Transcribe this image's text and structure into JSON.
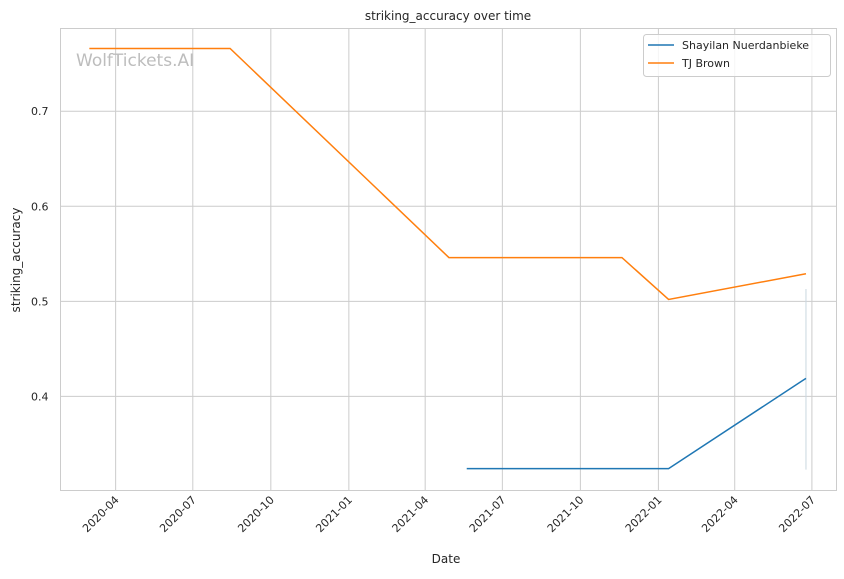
{
  "chart_data": {
    "type": "line",
    "title": "striking_accuracy over time",
    "xlabel": "Date",
    "ylabel": "striking_accuracy",
    "watermark": "WolfTickets.AI",
    "grid": true,
    "legend_placement": "top-right",
    "xlim": [
      "2020-01-27",
      "2022-07-30"
    ],
    "ylim": [
      0.301,
      0.787
    ],
    "x_ticks": [
      "2020-04",
      "2020-07",
      "2020-10",
      "2021-01",
      "2021-04",
      "2021-07",
      "2021-10",
      "2022-01",
      "2022-04",
      "2022-07"
    ],
    "y_ticks": [
      0.4,
      0.5,
      0.6,
      0.7
    ],
    "series": [
      {
        "name": "Shayilan Nuerdanbieke",
        "color": "#1f77b4",
        "x": [
          "2021-05-20",
          "2022-01-13",
          "2022-06-24"
        ],
        "y": [
          0.324,
          0.324,
          0.419
        ]
      },
      {
        "name": "TJ Brown",
        "color": "#ff7f0e",
        "x": [
          "2020-03-01",
          "2020-08-14",
          "2021-04-29",
          "2021-11-19",
          "2022-01-13",
          "2022-06-24"
        ],
        "y": [
          0.766,
          0.766,
          0.546,
          0.546,
          0.502,
          0.529
        ]
      }
    ],
    "faint_vertical_line": {
      "x": "2022-06-24",
      "y": [
        0.323,
        0.513
      ],
      "color": "#c9d6e0"
    }
  }
}
